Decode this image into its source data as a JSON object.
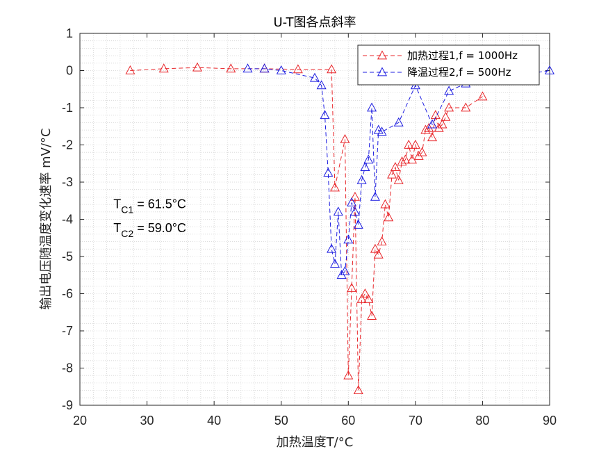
{
  "chart_data": {
    "type": "line",
    "title": "U-T图各点斜率",
    "xlabel": "加热温度T/°C",
    "ylabel": "输出电压随温度变化速率 mV/°C",
    "xlim": [
      20,
      90
    ],
    "ylim": [
      -9,
      1
    ],
    "xticks": [
      20,
      30,
      40,
      50,
      60,
      70,
      80,
      90
    ],
    "yticks": [
      -9,
      -8,
      -7,
      -6,
      -5,
      -4,
      -3,
      -2,
      -1,
      0,
      1
    ],
    "grid": "minor dotted",
    "legend_position": "top-right",
    "series": [
      {
        "name": "加热过程1,f = 1000Hz",
        "color": "#e8262a",
        "marker": "triangle",
        "line_style": "dashed",
        "x": [
          27.5,
          32.5,
          37.5,
          42.5,
          47.5,
          52.5,
          57.5,
          58.0,
          59.5,
          60.0,
          60.5,
          61.0,
          61.5,
          62.0,
          62.5,
          63.0,
          63.5,
          64.0,
          64.5,
          65.0,
          65.5,
          66.0,
          66.5,
          67.0,
          67.5,
          68.0,
          68.5,
          69.0,
          69.5,
          70.0,
          70.5,
          71.0,
          71.5,
          72.0,
          72.5,
          73.0,
          73.5,
          74.0,
          74.5,
          75.0,
          77.5,
          80.0
        ],
        "y": [
          0.0,
          0.05,
          0.08,
          0.05,
          0.05,
          0.03,
          0.03,
          -3.15,
          -1.85,
          -8.2,
          -5.85,
          -3.4,
          -8.6,
          -6.15,
          -6.0,
          -6.15,
          -6.6,
          -4.8,
          -4.95,
          -4.6,
          -3.6,
          -3.95,
          -2.8,
          -2.6,
          -2.95,
          -2.45,
          -2.4,
          -2.0,
          -2.4,
          -2.0,
          -2.3,
          -2.2,
          -1.6,
          -1.55,
          -1.8,
          -1.2,
          -1.55,
          -1.45,
          -1.25,
          -1.0,
          -1.0,
          -0.7
        ]
      },
      {
        "name": "降温过程2,f = 500Hz",
        "color": "#1c1ce0",
        "marker": "triangle",
        "line_style": "dashed",
        "x": [
          45.0,
          47.5,
          50.0,
          55.0,
          56.0,
          56.5,
          57.0,
          57.5,
          58.0,
          58.5,
          59.0,
          59.5,
          60.0,
          60.5,
          61.0,
          61.5,
          62.0,
          62.5,
          63.0,
          63.5,
          64.0,
          64.5,
          65.0,
          67.5,
          70.0,
          72.5,
          75.0,
          77.5,
          90.0
        ],
        "y": [
          0.05,
          0.05,
          0.0,
          -0.2,
          -0.4,
          -1.2,
          -2.75,
          -4.8,
          -5.2,
          -3.8,
          -5.5,
          -5.4,
          -4.55,
          -3.55,
          -3.8,
          -4.15,
          -2.95,
          -2.6,
          -2.4,
          -1.0,
          -3.4,
          -1.6,
          -1.65,
          -1.4,
          -0.4,
          -1.45,
          -0.55,
          -0.35,
          0.0
        ]
      }
    ],
    "annotations": [
      {
        "main": "T",
        "sub": "C1",
        "rest": " = 61.5°C",
        "x": 25,
        "y": -3.7
      },
      {
        "main": "T",
        "sub": "C2",
        "rest": " = 59.0°C",
        "x": 25,
        "y": -4.35
      }
    ]
  }
}
